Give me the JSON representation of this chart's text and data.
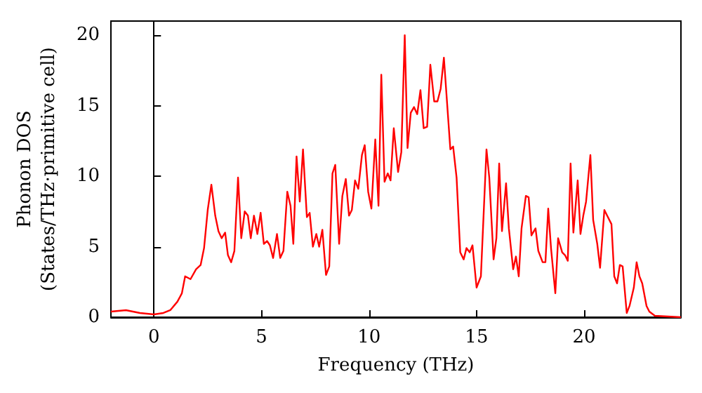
{
  "chart_data": {
    "type": "line",
    "xlabel": "Frequency (THz)",
    "ylabel": "Phonon DOS\n(States/THz·primitive cell)",
    "x": [
      -2,
      -1.3,
      -0.65,
      0,
      0.44,
      0.76,
      1.09,
      1.3,
      1.45,
      1.7,
      1.96,
      2.17,
      2.33,
      2.5,
      2.67,
      2.85,
      3,
      3.15,
      3.31,
      3.44,
      3.59,
      3.74,
      3.91,
      4.06,
      4.22,
      4.37,
      4.5,
      4.65,
      4.81,
      4.96,
      5.11,
      5.26,
      5.39,
      5.54,
      5.72,
      5.87,
      6.02,
      6.2,
      6.35,
      6.48,
      6.63,
      6.78,
      6.93,
      7.11,
      7.24,
      7.39,
      7.55,
      7.68,
      7.83,
      8,
      8.15,
      8.3,
      8.43,
      8.61,
      8.76,
      8.92,
      9.07,
      9.2,
      9.35,
      9.5,
      9.67,
      9.8,
      9.96,
      10.11,
      10.29,
      10.44,
      10.57,
      10.72,
      10.87,
      11,
      11.15,
      11.35,
      11.5,
      11.66,
      11.79,
      11.94,
      12.09,
      12.24,
      12.39,
      12.54,
      12.7,
      12.85,
      13.03,
      13.18,
      13.33,
      13.48,
      13.78,
      13.91,
      14.07,
      14.24,
      14.4,
      14.53,
      14.68,
      14.81,
      15,
      15.2,
      15.46,
      15.59,
      15.79,
      15.92,
      16.05,
      16.18,
      16.37,
      16.5,
      16.7,
      16.83,
      16.96,
      17.09,
      17.29,
      17.42,
      17.55,
      17.74,
      17.87,
      18.07,
      18.2,
      18.33,
      18.46,
      18.66,
      18.79,
      18.98,
      19.11,
      19.24,
      19.37,
      19.5,
      19.7,
      19.83,
      19.96,
      20.09,
      20.29,
      20.42,
      20.61,
      20.74,
      20.94,
      21.07,
      21.27,
      21.4,
      21.53,
      21.66,
      21.79,
      21.98,
      22.11,
      22.31,
      22.44,
      22.57,
      22.7,
      22.9,
      23.03,
      23.29,
      24.5
    ],
    "series": [
      {
        "color": "#ff0000",
        "values": [
          0.4,
          0.5,
          0.3,
          0.2,
          0.3,
          0.5,
          1.1,
          1.7,
          2.9,
          2.7,
          3.4,
          3.7,
          4.9,
          7.6,
          9.4,
          7.2,
          6.1,
          5.6,
          6,
          4.4,
          3.9,
          4.7,
          9.9,
          5.6,
          7.5,
          7.2,
          5.6,
          7.2,
          5.9,
          7.4,
          5.2,
          5.4,
          5.1,
          4.2,
          5.9,
          4.2,
          4.7,
          8.9,
          7.9,
          5.2,
          11.4,
          8.2,
          11.9,
          7.1,
          7.4,
          5,
          5.9,
          5,
          6.2,
          3,
          3.6,
          10.2,
          10.8,
          5.2,
          8.6,
          9.8,
          7.2,
          7.6,
          9.7,
          9.1,
          11.5,
          12.2,
          8.9,
          7.7,
          12.6,
          7.9,
          17.2,
          9.6,
          10.2,
          9.7,
          13.4,
          10.3,
          11.7,
          20,
          12,
          14.5,
          14.9,
          14.4,
          16.1,
          13.4,
          13.5,
          17.9,
          15.3,
          15.3,
          16.2,
          18.4,
          11.9,
          12.1,
          9.9,
          4.6,
          4.1,
          4.9,
          4.6,
          5.1,
          2.1,
          2.9,
          11.9,
          9.9,
          4.1,
          5.6,
          10.9,
          6.1,
          9.5,
          6.3,
          3.4,
          4.3,
          2.9,
          6.3,
          8.6,
          8.5,
          5.8,
          6.3,
          4.7,
          3.9,
          3.9,
          7.7,
          4.9,
          1.7,
          5.6,
          4.6,
          4.4,
          4,
          10.9,
          6,
          9.7,
          5.9,
          7.2,
          8.2,
          11.5,
          6.9,
          5.2,
          3.5,
          7.6,
          7.2,
          6.6,
          2.9,
          2.4,
          3.7,
          3.6,
          0.3,
          0.8,
          2.1,
          3.9,
          2.9,
          2.4,
          0.8,
          0.4,
          0.1,
          0
        ]
      }
    ],
    "xlim": [
      -2,
      24.5
    ],
    "ylim": [
      0,
      21
    ],
    "xticks": [
      0,
      5,
      10,
      15,
      20
    ],
    "yticks": [
      0,
      5,
      10,
      15,
      20
    ],
    "marker": "none",
    "line_style": "solid"
  }
}
